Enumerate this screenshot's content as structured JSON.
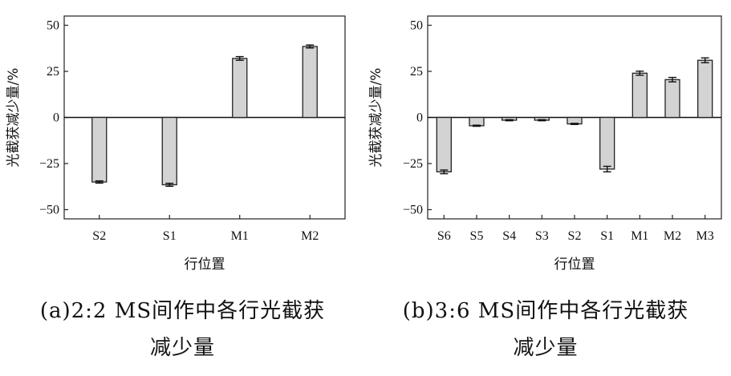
{
  "chart_data": [
    {
      "type": "bar",
      "categories": [
        "S2",
        "S1",
        "M1",
        "M2"
      ],
      "values": [
        -35,
        -36.5,
        32,
        38.5
      ],
      "errors": [
        0.6,
        0.8,
        1.0,
        0.8
      ],
      "ylim": [
        -55,
        55
      ],
      "yticks": [
        -50,
        -25,
        0,
        25,
        50
      ],
      "ytick_labels": [
        "−50",
        "−25",
        "0",
        "25",
        "50"
      ],
      "xlabel": "行位置",
      "ylabel": "光截获减少量/%",
      "caption_line1": "(a)2:2 MS间作中各行光截获",
      "caption_line2": "减少量",
      "bar_color": "#d3d3d3"
    },
    {
      "type": "bar",
      "categories": [
        "S6",
        "S5",
        "S4",
        "S3",
        "S2",
        "S1",
        "M1",
        "M2",
        "M3"
      ],
      "values": [
        -29.5,
        -4.5,
        -1.5,
        -1.5,
        -3.5,
        -28,
        24,
        20.5,
        31
      ],
      "errors": [
        1.0,
        0.3,
        0.3,
        0.3,
        0.3,
        1.5,
        1.1,
        1.2,
        1.3
      ],
      "ylim": [
        -55,
        55
      ],
      "yticks": [
        -50,
        -25,
        0,
        25,
        50
      ],
      "ytick_labels": [
        "−50",
        "−25",
        "0",
        "25",
        "50"
      ],
      "xlabel": "行位置",
      "ylabel": "光截获减少量/%",
      "caption_line1": "(b)3:6 MS间作中各行光截获",
      "caption_line2": "减少量",
      "bar_color": "#d3d3d3"
    }
  ]
}
